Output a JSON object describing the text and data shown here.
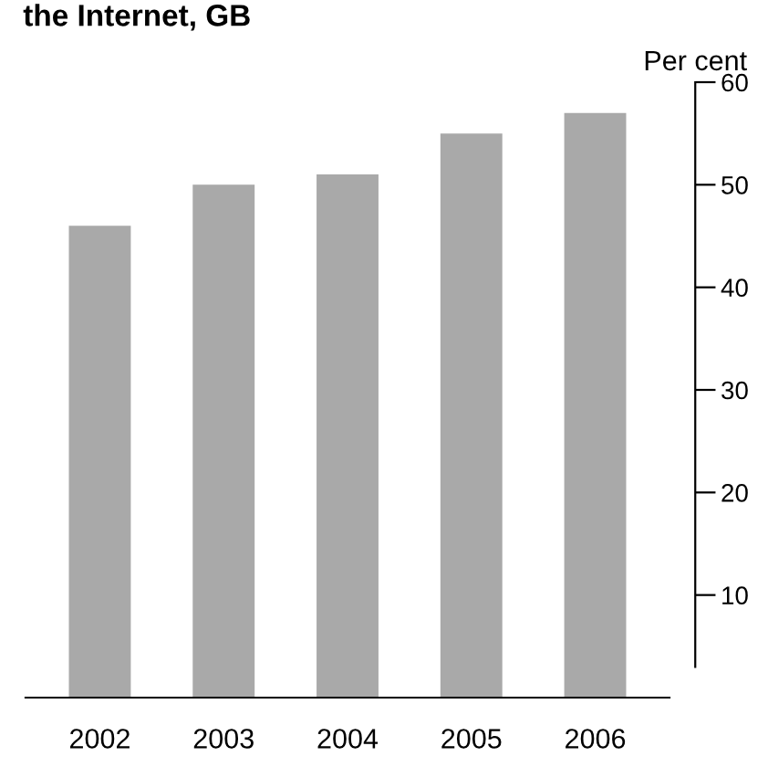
{
  "chart_data": {
    "type": "bar",
    "title": "the Internet, GB",
    "ylabel": "Per cent",
    "categories": [
      "2002",
      "2003",
      "2004",
      "2005",
      "2006"
    ],
    "values": [
      46,
      50,
      51,
      55,
      57
    ],
    "color": "#a9a9a9",
    "ylim": [
      0,
      60
    ],
    "yticks": [
      10,
      20,
      30,
      40,
      50,
      60
    ],
    "grid": false,
    "legend": false
  }
}
